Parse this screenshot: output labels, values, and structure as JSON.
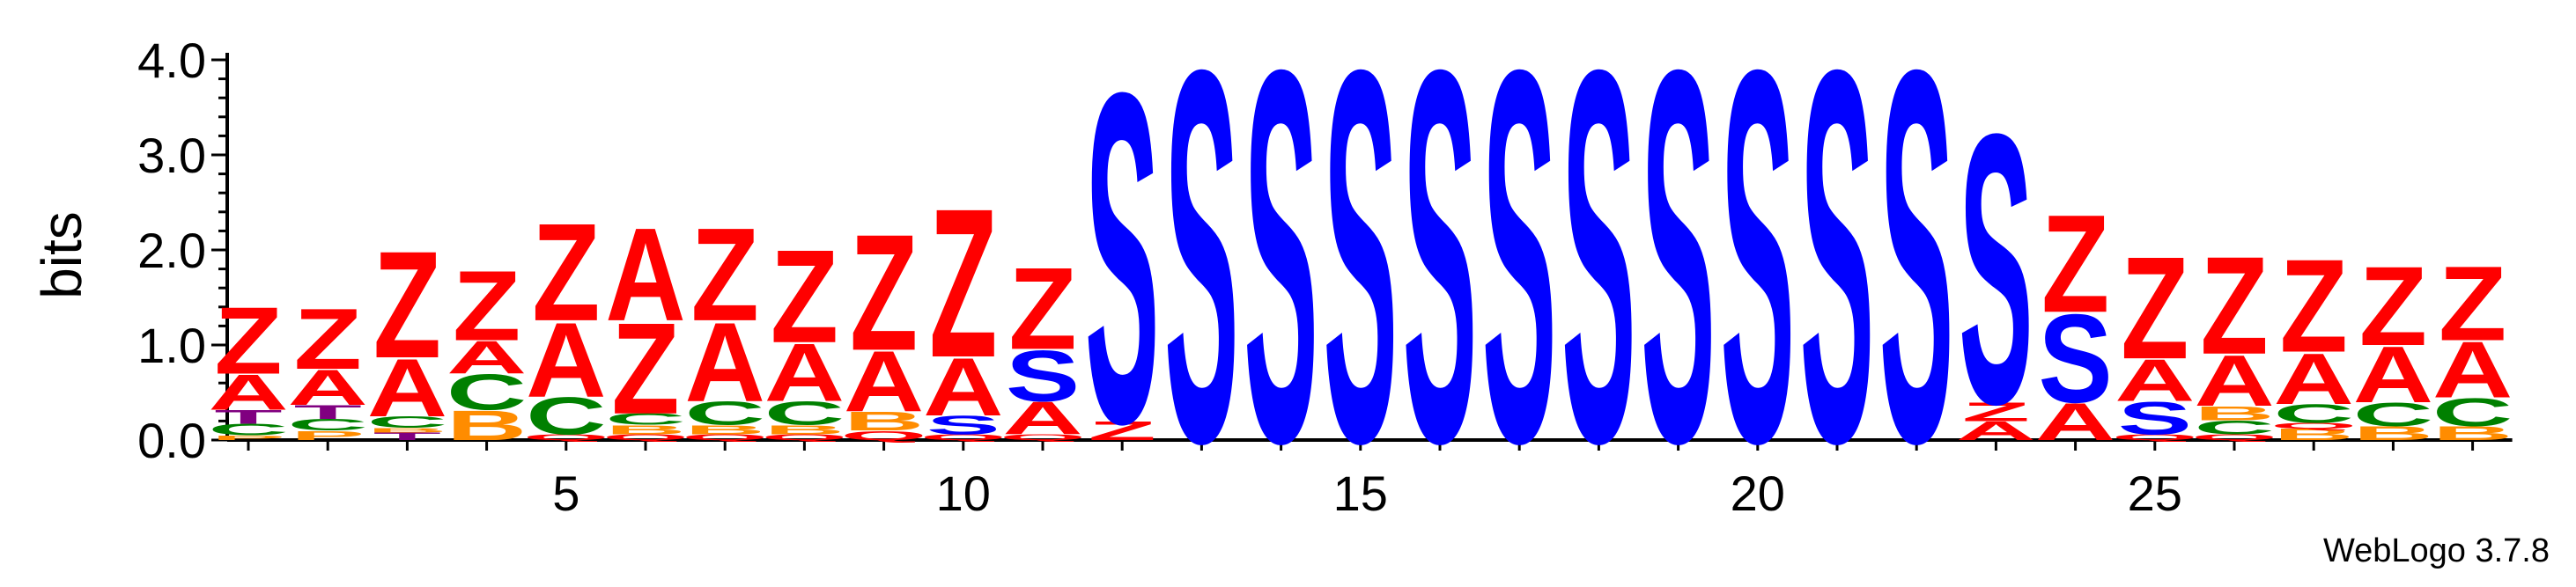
{
  "chart_data": {
    "type": "sequence-logo",
    "ylabel": "bits",
    "ylim": [
      0,
      4.0
    ],
    "yticks": [
      "0.0",
      "1.0",
      "2.0",
      "3.0",
      "4.0"
    ],
    "xticks": [
      5,
      10,
      15,
      20,
      25
    ],
    "footer": "WebLogo 3.7.8",
    "colors": {
      "Z": "#ff0000",
      "A": "#ff0000",
      "S": "#0000ff",
      "C": "#008000",
      "B": "#ff8c00",
      "T": "#800080",
      "P": "#ff8c00",
      "Q": "#ff0000"
    },
    "positions": [
      {
        "pos": 1,
        "stack": [
          [
            "P",
            0.05
          ],
          [
            "C",
            0.12
          ],
          [
            "T",
            0.15
          ],
          [
            "A",
            0.38
          ],
          [
            "Z",
            0.72
          ]
        ]
      },
      {
        "pos": 2,
        "stack": [
          [
            "P",
            0.1
          ],
          [
            "C",
            0.12
          ],
          [
            "T",
            0.15
          ],
          [
            "A",
            0.38
          ],
          [
            "Z",
            0.65
          ]
        ]
      },
      {
        "pos": 3,
        "stack": [
          [
            "T",
            0.08
          ],
          [
            "B",
            0.05
          ],
          [
            "C",
            0.12
          ],
          [
            "A",
            0.62
          ],
          [
            "Z",
            1.15
          ]
        ]
      },
      {
        "pos": 4,
        "stack": [
          [
            "B",
            0.32
          ],
          [
            "C",
            0.38
          ],
          [
            "A",
            0.35
          ],
          [
            "Z",
            0.75
          ]
        ]
      },
      {
        "pos": 5,
        "stack": [
          [
            "Q",
            0.06
          ],
          [
            "C",
            0.4
          ],
          [
            "A",
            0.8
          ],
          [
            "Z",
            1.05
          ]
        ]
      },
      {
        "pos": 6,
        "stack": [
          [
            "Q",
            0.06
          ],
          [
            "B",
            0.1
          ],
          [
            "C",
            0.12
          ],
          [
            "Z",
            0.98
          ],
          [
            "A",
            1.0
          ]
        ]
      },
      {
        "pos": 7,
        "stack": [
          [
            "Q",
            0.06
          ],
          [
            "B",
            0.1
          ],
          [
            "C",
            0.25
          ],
          [
            "A",
            0.85
          ],
          [
            "Z",
            1.0
          ]
        ]
      },
      {
        "pos": 8,
        "stack": [
          [
            "Q",
            0.06
          ],
          [
            "B",
            0.1
          ],
          [
            "C",
            0.25
          ],
          [
            "A",
            0.62
          ],
          [
            "Z",
            1.0
          ]
        ]
      },
      {
        "pos": 9,
        "stack": [
          [
            "Q",
            0.1
          ],
          [
            "B",
            0.2
          ],
          [
            "A",
            0.65
          ],
          [
            "Z",
            1.25
          ]
        ]
      },
      {
        "pos": 10,
        "stack": [
          [
            "Q",
            0.06
          ],
          [
            "S",
            0.2
          ],
          [
            "A",
            0.62
          ],
          [
            "Z",
            1.6
          ]
        ]
      },
      {
        "pos": 11,
        "stack": [
          [
            "Q",
            0.06
          ],
          [
            "A",
            0.35
          ],
          [
            "S",
            0.55
          ],
          [
            "Z",
            0.88
          ]
        ]
      },
      {
        "pos": 12,
        "stack": [
          [
            "Z",
            0.2
          ],
          [
            "S",
            3.55
          ]
        ]
      },
      {
        "pos": 13,
        "stack": [
          [
            "S",
            4.0
          ]
        ]
      },
      {
        "pos": 14,
        "stack": [
          [
            "S",
            4.0
          ]
        ]
      },
      {
        "pos": 15,
        "stack": [
          [
            "S",
            4.0
          ]
        ]
      },
      {
        "pos": 16,
        "stack": [
          [
            "S",
            4.0
          ]
        ]
      },
      {
        "pos": 17,
        "stack": [
          [
            "S",
            4.0
          ]
        ]
      },
      {
        "pos": 18,
        "stack": [
          [
            "S",
            4.0
          ]
        ]
      },
      {
        "pos": 19,
        "stack": [
          [
            "S",
            4.0
          ]
        ]
      },
      {
        "pos": 20,
        "stack": [
          [
            "S",
            4.0
          ]
        ]
      },
      {
        "pos": 21,
        "stack": [
          [
            "S",
            4.0
          ]
        ]
      },
      {
        "pos": 22,
        "stack": [
          [
            "S",
            4.0
          ]
        ]
      },
      {
        "pos": 23,
        "stack": [
          [
            "A",
            0.2
          ],
          [
            "Z",
            0.2
          ],
          [
            "S",
            2.9
          ]
        ]
      },
      {
        "pos": 24,
        "stack": [
          [
            "A",
            0.4
          ],
          [
            "S",
            0.95
          ],
          [
            "Z",
            1.05
          ]
        ]
      },
      {
        "pos": 25,
        "stack": [
          [
            "Q",
            0.06
          ],
          [
            "S",
            0.35
          ],
          [
            "A",
            0.45
          ],
          [
            "Z",
            1.1
          ]
        ]
      },
      {
        "pos": 26,
        "stack": [
          [
            "Q",
            0.06
          ],
          [
            "C",
            0.15
          ],
          [
            "B",
            0.15
          ],
          [
            "A",
            0.55
          ],
          [
            "Z",
            1.05
          ]
        ]
      },
      {
        "pos": 27,
        "stack": [
          [
            "B",
            0.12
          ],
          [
            "Q",
            0.06
          ],
          [
            "C",
            0.2
          ],
          [
            "A",
            0.55
          ],
          [
            "Z",
            1.0
          ]
        ]
      },
      {
        "pos": 28,
        "stack": [
          [
            "B",
            0.15
          ],
          [
            "C",
            0.25
          ],
          [
            "A",
            0.6
          ],
          [
            "Z",
            0.85
          ]
        ]
      },
      {
        "pos": 29,
        "stack": [
          [
            "B",
            0.15
          ],
          [
            "C",
            0.3
          ],
          [
            "A",
            0.6
          ],
          [
            "Z",
            0.8
          ]
        ]
      }
    ]
  }
}
